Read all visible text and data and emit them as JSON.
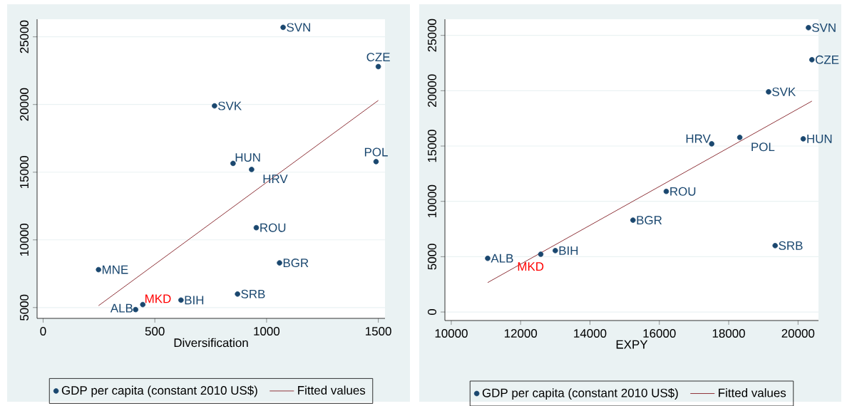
{
  "chart_data": [
    {
      "type": "scatter",
      "xlabel": "Diversification",
      "xlim": [
        -27,
        1530
      ],
      "ylim": [
        4200,
        26300
      ],
      "xticks": [
        0,
        500,
        1000,
        1500
      ],
      "yticks": [
        5000,
        10000,
        15000,
        20000,
        25000
      ],
      "grid": "y",
      "legend": "bottom",
      "series": [
        {
          "name": "GDP per capita (constant 2010 US$)",
          "marker": "circle",
          "color": "#1a476f",
          "x": [
            1074,
            1500,
            767,
            850,
            933,
            1490,
            954,
            1058,
            248,
            870,
            617,
            446,
            414
          ],
          "values": [
            25700,
            22800,
            19900,
            15650,
            15200,
            15780,
            10900,
            8300,
            7800,
            6000,
            5550,
            5220,
            4850
          ]
        },
        {
          "name": "Fitted values",
          "type": "line",
          "marker": "none",
          "color": "#90353b",
          "x": [
            248,
            1500
          ],
          "values": [
            5140,
            20300
          ]
        }
      ],
      "annotations": [
        {
          "text": "SVN",
          "x": 1074,
          "y": 25700
        },
        {
          "text": "CZE",
          "x": 1500,
          "y": 22800
        },
        {
          "text": "SVK",
          "x": 767,
          "y": 19900
        },
        {
          "text": "HUN",
          "x": 850,
          "y": 15650
        },
        {
          "text": "HRV",
          "x": 933,
          "y": 15200
        },
        {
          "text": "POL",
          "x": 1490,
          "y": 15780
        },
        {
          "text": "ROU",
          "x": 954,
          "y": 10900
        },
        {
          "text": "BGR",
          "x": 1058,
          "y": 8300
        },
        {
          "text": "MNE",
          "x": 248,
          "y": 7800
        },
        {
          "text": "SRB",
          "x": 870,
          "y": 6000
        },
        {
          "text": "BIH",
          "x": 617,
          "y": 5550
        },
        {
          "text": "MKD",
          "x": 446,
          "y": 5220
        },
        {
          "text": "ALB",
          "x": 414,
          "y": 4850
        }
      ]
    },
    {
      "type": "scatter",
      "xlabel": "EXPY",
      "xlim": [
        9816,
        20590
      ],
      "ylim": [
        -770,
        26460
      ],
      "xticks": [
        10000,
        12000,
        14000,
        16000,
        18000,
        20000
      ],
      "yticks": [
        0,
        5000,
        10000,
        15000,
        20000,
        25000
      ],
      "grid": "y",
      "legend": "bottom",
      "series": [
        {
          "name": "GDP per capita (constant 2010 US$)",
          "marker": "circle",
          "color": "#1a476f",
          "x": [
            20300,
            20400,
            19150,
            17510,
            18320,
            20150,
            16200,
            15240,
            19340,
            13000,
            12580,
            11050
          ],
          "values": [
            25700,
            22800,
            19900,
            15200,
            15780,
            15650,
            10900,
            8300,
            6000,
            5550,
            5220,
            4850
          ]
        },
        {
          "name": "Fitted values",
          "type": "line",
          "marker": "none",
          "color": "#90353b",
          "x": [
            11050,
            20400
          ],
          "values": [
            2660,
            19060
          ]
        }
      ],
      "annotations": [
        {
          "text": "SVN",
          "x": 20300,
          "y": 25700
        },
        {
          "text": "CZE",
          "x": 20400,
          "y": 22800
        },
        {
          "text": "SVK",
          "x": 19150,
          "y": 19900
        },
        {
          "text": "HRV",
          "x": 17510,
          "y": 15200
        },
        {
          "text": "POL",
          "x": 18320,
          "y": 15780
        },
        {
          "text": "HUN",
          "x": 20150,
          "y": 15650
        },
        {
          "text": "ROU",
          "x": 16200,
          "y": 10900
        },
        {
          "text": "BGR",
          "x": 15240,
          "y": 8300
        },
        {
          "text": "SRB",
          "x": 19340,
          "y": 6000
        },
        {
          "text": "BIH",
          "x": 13000,
          "y": 5550
        },
        {
          "text": "MKD",
          "x": 12580,
          "y": 5220
        },
        {
          "text": "ALB",
          "x": 11050,
          "y": 4850
        }
      ]
    }
  ]
}
